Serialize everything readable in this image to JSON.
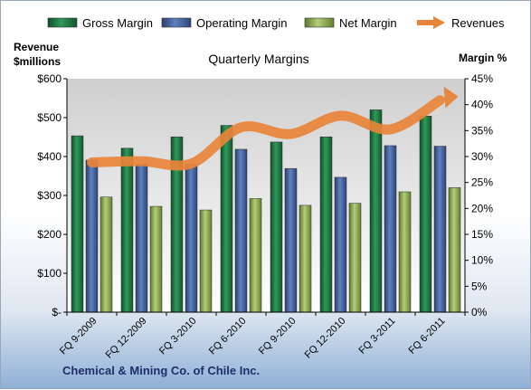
{
  "footer": "Chemical & Mining Co. of Chile Inc.",
  "chart_data": {
    "type": "bar",
    "title": "Quarterly Margins",
    "categories": [
      "FQ 9-2009",
      "FQ 12-2009",
      "FQ 3-2010",
      "FQ 6-2010",
      "FQ 9-2010",
      "FQ 12-2010",
      "FQ 3-2011",
      "FQ 6-2011"
    ],
    "left_axis": {
      "label_lines": [
        "Revenue",
        "$millions"
      ],
      "ticks": [
        "$-",
        "$100",
        "$200",
        "$300",
        "$400",
        "$500",
        "$600"
      ],
      "ylim": [
        0,
        600
      ]
    },
    "right_axis": {
      "label": "Margin %",
      "ticks": [
        "0%",
        "5%",
        "10%",
        "15%",
        "20%",
        "25%",
        "30%",
        "35%",
        "40%",
        "45%"
      ],
      "ylim": [
        0,
        45
      ]
    },
    "series": [
      {
        "name": "Gross Margin",
        "axis": "right",
        "type": "bar",
        "color": "#1e7a45",
        "values": [
          34.0,
          31.6,
          33.8,
          36.0,
          32.8,
          33.8,
          39.0,
          37.8
        ]
      },
      {
        "name": "Operating Margin",
        "axis": "right",
        "type": "bar",
        "color": "#3f5f9b",
        "values": [
          29.3,
          28.5,
          28.5,
          31.4,
          27.7,
          26.0,
          32.1,
          32.0
        ]
      },
      {
        "name": "Net Margin",
        "axis": "right",
        "type": "bar",
        "color": "#8aa44c",
        "values": [
          22.2,
          20.4,
          19.7,
          21.9,
          20.6,
          21.0,
          23.2,
          24.0
        ]
      },
      {
        "name": "Revenues",
        "axis": "left",
        "type": "line",
        "color": "#e8843a",
        "values": [
          385,
          388,
          382,
          475,
          458,
          505,
          470,
          545
        ]
      }
    ],
    "grid": false,
    "legend": "top"
  }
}
